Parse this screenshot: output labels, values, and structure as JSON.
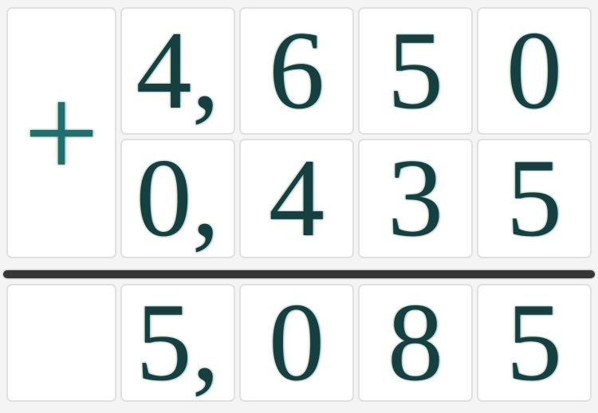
{
  "problem": {
    "type": "column-addition",
    "operator": "+",
    "addend1": {
      "value": "4,650",
      "cells": [
        "4,",
        "6",
        "5",
        "0"
      ]
    },
    "addend2": {
      "value": "0,435",
      "cells": [
        "0,",
        "4",
        "3",
        "5"
      ]
    },
    "sum": {
      "value": "5,085",
      "cells": [
        "5,",
        "0",
        "8",
        "5"
      ]
    }
  },
  "colors": {
    "page_bg": "#f4f4f4",
    "cell_bg": "#ffffff",
    "cell_border": "#e0e0e0",
    "digit": "#15403f",
    "operator": "#1f6f6e",
    "rule": "#363636"
  }
}
